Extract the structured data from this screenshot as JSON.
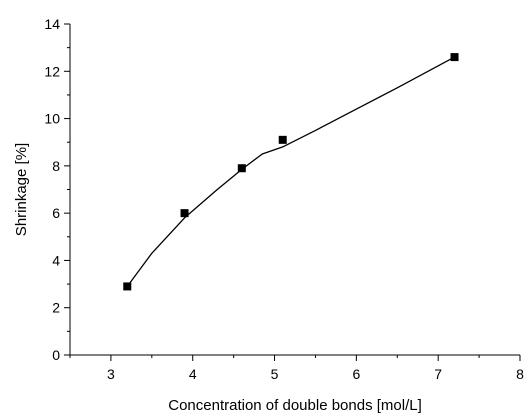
{
  "chart_data": {
    "type": "scatter",
    "xlabel": "Concentration of double bonds [mol/L]",
    "ylabel": "Shrinkage [%]",
    "xlim": [
      2.5,
      8
    ],
    "ylim": [
      0,
      14
    ],
    "x_ticks": [
      3,
      4,
      5,
      6,
      7,
      8
    ],
    "y_ticks": [
      0,
      2,
      4,
      6,
      8,
      10,
      12,
      14
    ],
    "grid": false,
    "series": [
      {
        "marker": "square",
        "color": "#000000",
        "x": [
          3.2,
          3.9,
          4.6,
          5.1,
          7.2
        ],
        "y": [
          2.9,
          6.0,
          7.9,
          9.1,
          12.6
        ]
      }
    ],
    "fit_curve": {
      "color": "#000000",
      "x": [
        3.2,
        3.5,
        3.9,
        4.3,
        4.6,
        4.85,
        5.1,
        5.5,
        6.0,
        6.5,
        7.2
      ],
      "y": [
        2.9,
        4.3,
        5.8,
        7.0,
        7.85,
        8.5,
        8.8,
        9.5,
        10.4,
        11.3,
        12.6
      ]
    }
  }
}
